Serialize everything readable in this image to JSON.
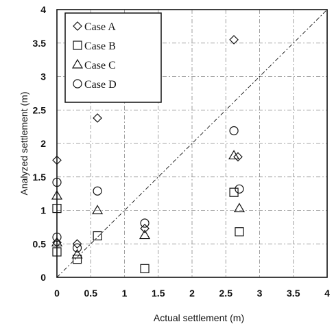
{
  "chart_data": {
    "type": "scatter",
    "xlabel": "Actual settlement (m)",
    "ylabel": "Analyzed settlement (m)",
    "xlim": [
      0,
      4
    ],
    "ylim": [
      0,
      4
    ],
    "xticks": [
      "0",
      "0.5",
      "1",
      "1.5",
      "2",
      "2.5",
      "3",
      "3.5",
      "4"
    ],
    "yticks": [
      "0",
      "0.5",
      "1",
      "1.5",
      "2",
      "2.5",
      "3",
      "3.5",
      "4"
    ],
    "grid": true,
    "reference_line": "y = x",
    "legend_position": "top-left",
    "series": [
      {
        "name": "Case A",
        "marker": "diamond",
        "points": [
          [
            0,
            1.75
          ],
          [
            0,
            0.52
          ],
          [
            0.3,
            0.5
          ],
          [
            0.6,
            2.38
          ],
          [
            1.3,
            0.73
          ],
          [
            2.62,
            3.55
          ],
          [
            2.68,
            1.8
          ]
        ]
      },
      {
        "name": "Case B",
        "marker": "square",
        "points": [
          [
            0,
            1.03
          ],
          [
            0,
            0.38
          ],
          [
            0.3,
            0.27
          ],
          [
            0.6,
            0.62
          ],
          [
            1.3,
            0.13
          ],
          [
            2.62,
            1.27
          ],
          [
            2.7,
            0.68
          ]
        ]
      },
      {
        "name": "Case C",
        "marker": "triangle",
        "points": [
          [
            0,
            1.22
          ],
          [
            0,
            0.52
          ],
          [
            0.3,
            0.34
          ],
          [
            0.6,
            1.0
          ],
          [
            1.3,
            0.63
          ],
          [
            2.62,
            1.82
          ],
          [
            2.7,
            1.03
          ]
        ]
      },
      {
        "name": "Case D",
        "marker": "circle",
        "points": [
          [
            0,
            1.42
          ],
          [
            0,
            0.6
          ],
          [
            0.3,
            0.44
          ],
          [
            0.6,
            1.29
          ],
          [
            1.3,
            0.81
          ],
          [
            2.62,
            2.19
          ],
          [
            2.7,
            1.32
          ]
        ]
      }
    ]
  }
}
